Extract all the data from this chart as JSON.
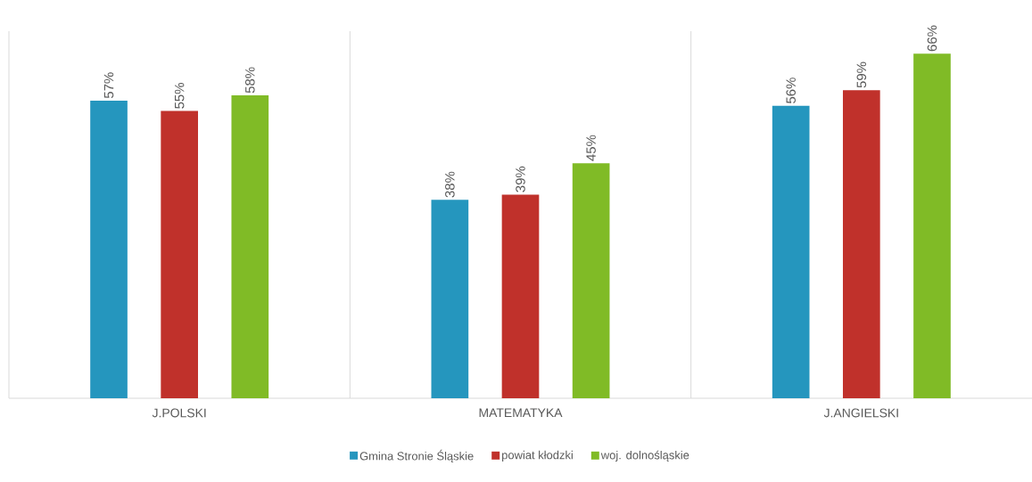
{
  "chart_data": {
    "type": "bar",
    "categories": [
      "J.POLSKI",
      "MATEMATYKA",
      "J.ANGIELSKI"
    ],
    "series": [
      {
        "name": "Gmina Stronie Śląskie",
        "color": "#2596be",
        "values": [
          57,
          38,
          56
        ],
        "value_labels": [
          "57%",
          "38%",
          "56%"
        ]
      },
      {
        "name": "powiat kłodzki",
        "color": "#c0312b",
        "values": [
          55,
          39,
          59
        ],
        "value_labels": [
          "55%",
          "39%",
          "59%"
        ]
      },
      {
        "name": "woj. dolnośląskie",
        "color": "#80bb26",
        "values": [
          58,
          45,
          66
        ],
        "value_labels": [
          "58%",
          "45%",
          "66%"
        ]
      }
    ],
    "legend": "bottom"
  }
}
